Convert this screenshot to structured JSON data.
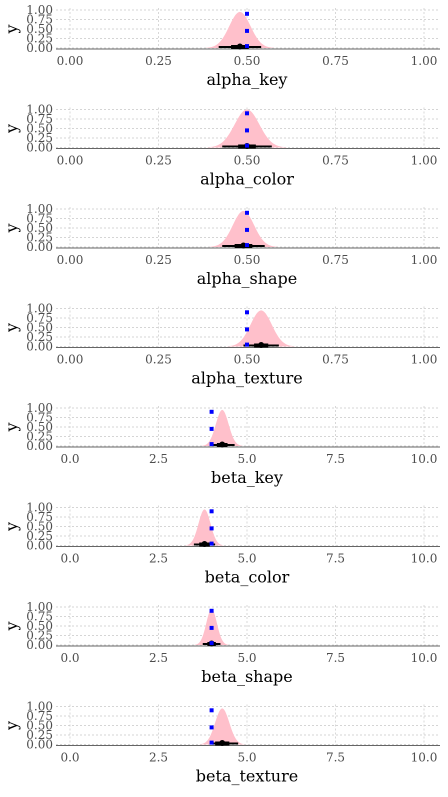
{
  "colors": {
    "density_fill": "#ffc0cb",
    "marker": "#0000ff",
    "interval": "#000000",
    "grid": "#c8c8c8",
    "tick_text": "#4d4d4d"
  },
  "chart_data": [
    {
      "type": "area",
      "xlabel": "alpha_key",
      "ylabel": "y",
      "xlim": [
        0,
        1
      ],
      "ylim": [
        0,
        1
      ],
      "xticks": [
        0,
        0.25,
        0.5,
        0.75,
        1
      ],
      "xtick_labels": [
        "0.00",
        "0.25",
        "0.50",
        "0.75",
        "1.00"
      ],
      "yticks": [
        0,
        0.25,
        0.5,
        0.75,
        1
      ],
      "ytick_labels": [
        "0.00",
        "0.25",
        "0.50",
        "0.75",
        "1.00"
      ],
      "grid": true,
      "density": {
        "mean": 0.48,
        "sd": 0.03,
        "peak": 0.95
      },
      "markers": {
        "x": [
          0.5,
          0.5,
          0.5
        ],
        "y": [
          0.9,
          0.45,
          0.05
        ]
      },
      "interval": {
        "outer": [
          0.42,
          0.54
        ],
        "inner": [
          0.455,
          0.505
        ],
        "point": 0.48
      }
    },
    {
      "type": "area",
      "xlabel": "alpha_color",
      "ylabel": "y",
      "xlim": [
        0,
        1
      ],
      "ylim": [
        0,
        1
      ],
      "xticks": [
        0,
        0.25,
        0.5,
        0.75,
        1
      ],
      "xtick_labels": [
        "0.00",
        "0.25",
        "0.50",
        "0.75",
        "1.00"
      ],
      "yticks": [
        0,
        0.25,
        0.5,
        0.75,
        1
      ],
      "ytick_labels": [
        "0.00",
        "0.25",
        "0.50",
        "0.75",
        "1.00"
      ],
      "grid": true,
      "density": {
        "mean": 0.5,
        "sd": 0.035,
        "peak": 1.0
      },
      "markers": {
        "x": [
          0.5,
          0.5,
          0.5
        ],
        "y": [
          0.9,
          0.45,
          0.05
        ]
      },
      "interval": {
        "outer": [
          0.43,
          0.57
        ],
        "inner": [
          0.475,
          0.525
        ],
        "point": 0.5
      }
    },
    {
      "type": "area",
      "xlabel": "alpha_shape",
      "ylabel": "y",
      "xlim": [
        0,
        1
      ],
      "ylim": [
        0,
        1
      ],
      "xticks": [
        0,
        0.25,
        0.5,
        0.75,
        1
      ],
      "xtick_labels": [
        "0.00",
        "0.25",
        "0.50",
        "0.75",
        "1.00"
      ],
      "yticks": [
        0,
        0.25,
        0.5,
        0.75,
        1
      ],
      "ytick_labels": [
        "0.00",
        "0.25",
        "0.50",
        "0.75",
        "1.00"
      ],
      "grid": true,
      "density": {
        "mean": 0.49,
        "sd": 0.03,
        "peak": 0.95
      },
      "markers": {
        "x": [
          0.5,
          0.5,
          0.5
        ],
        "y": [
          0.9,
          0.45,
          0.05
        ]
      },
      "interval": {
        "outer": [
          0.43,
          0.55
        ],
        "inner": [
          0.465,
          0.515
        ],
        "point": 0.49
      }
    },
    {
      "type": "area",
      "xlabel": "alpha_texture",
      "ylabel": "y",
      "xlim": [
        0,
        1
      ],
      "ylim": [
        0,
        1
      ],
      "xticks": [
        0,
        0.25,
        0.5,
        0.75,
        1
      ],
      "xtick_labels": [
        "0.00",
        "0.25",
        "0.50",
        "0.75",
        "1.00"
      ],
      "yticks": [
        0,
        0.25,
        0.5,
        0.75,
        1
      ],
      "ytick_labels": [
        "0.00",
        "0.25",
        "0.50",
        "0.75",
        "1.00"
      ],
      "grid": true,
      "density": {
        "mean": 0.54,
        "sd": 0.03,
        "peak": 0.95
      },
      "markers": {
        "x": [
          0.5,
          0.5,
          0.5
        ],
        "y": [
          0.9,
          0.45,
          0.05
        ]
      },
      "interval": {
        "outer": [
          0.49,
          0.59
        ],
        "inner": [
          0.52,
          0.56
        ],
        "point": 0.54
      }
    },
    {
      "type": "area",
      "xlabel": "beta_key",
      "ylabel": "y",
      "xlim": [
        0,
        10
      ],
      "ylim": [
        0,
        1
      ],
      "xticks": [
        0,
        2.5,
        5,
        7.5,
        10
      ],
      "xtick_labels": [
        "0.0",
        "2.5",
        "5.0",
        "7.5",
        "10.0"
      ],
      "yticks": [
        0,
        0.25,
        0.5,
        0.75,
        1
      ],
      "ytick_labels": [
        "0.00",
        "0.25",
        "0.50",
        "0.75",
        "1.00"
      ],
      "grid": true,
      "density": {
        "mean": 4.3,
        "sd": 0.18,
        "peak": 0.95
      },
      "markers": {
        "x": [
          4,
          4,
          4
        ],
        "y": [
          0.9,
          0.45,
          0.05
        ]
      },
      "interval": {
        "outer": [
          4.0,
          4.65
        ],
        "inner": [
          4.15,
          4.45
        ],
        "point": 4.3
      }
    },
    {
      "type": "area",
      "xlabel": "beta_color",
      "ylabel": "y",
      "xlim": [
        0,
        10
      ],
      "ylim": [
        0,
        1
      ],
      "xticks": [
        0,
        2.5,
        5,
        7.5,
        10
      ],
      "xtick_labels": [
        "0.0",
        "2.5",
        "5.0",
        "7.5",
        "10.0"
      ],
      "yticks": [
        0,
        0.25,
        0.5,
        0.75,
        1
      ],
      "ytick_labels": [
        "0.00",
        "0.25",
        "0.50",
        "0.75",
        "1.00"
      ],
      "grid": true,
      "density": {
        "mean": 3.8,
        "sd": 0.17,
        "peak": 0.95
      },
      "markers": {
        "x": [
          4,
          4,
          4
        ],
        "y": [
          0.9,
          0.45,
          0.05
        ]
      },
      "interval": {
        "outer": [
          3.5,
          4.1
        ],
        "inner": [
          3.65,
          3.95
        ],
        "point": 3.8
      }
    },
    {
      "type": "area",
      "xlabel": "beta_shape",
      "ylabel": "y",
      "xlim": [
        0,
        10
      ],
      "ylim": [
        0,
        1
      ],
      "xticks": [
        0,
        2.5,
        5,
        7.5,
        10
      ],
      "xtick_labels": [
        "0.0",
        "2.5",
        "5.0",
        "7.5",
        "10.0"
      ],
      "yticks": [
        0,
        0.25,
        0.5,
        0.75,
        1
      ],
      "ytick_labels": [
        "0.00",
        "0.25",
        "0.50",
        "0.75",
        "1.00"
      ],
      "grid": true,
      "density": {
        "mean": 4.0,
        "sd": 0.15,
        "peak": 0.95
      },
      "markers": {
        "x": [
          4,
          4,
          4
        ],
        "y": [
          0.9,
          0.45,
          0.05
        ]
      },
      "interval": {
        "outer": [
          3.75,
          4.25
        ],
        "inner": [
          3.88,
          4.12
        ],
        "point": 4.0
      }
    },
    {
      "type": "area",
      "xlabel": "beta_texture",
      "ylabel": "y",
      "xlim": [
        0,
        10
      ],
      "ylim": [
        0,
        1
      ],
      "xticks": [
        0,
        2.5,
        5,
        7.5,
        10
      ],
      "xtick_labels": [
        "0.0",
        "2.5",
        "5.0",
        "7.5",
        "10.0"
      ],
      "yticks": [
        0,
        0.25,
        0.5,
        0.75,
        1
      ],
      "ytick_labels": [
        "0.00",
        "0.25",
        "0.50",
        "0.75",
        "1.00"
      ],
      "grid": true,
      "density": {
        "mean": 4.3,
        "sd": 0.2,
        "peak": 0.95
      },
      "markers": {
        "x": [
          4,
          4,
          4
        ],
        "y": [
          0.9,
          0.45,
          0.05
        ]
      },
      "interval": {
        "outer": [
          3.95,
          4.75
        ],
        "inner": [
          4.1,
          4.5
        ],
        "point": 4.3
      }
    }
  ]
}
